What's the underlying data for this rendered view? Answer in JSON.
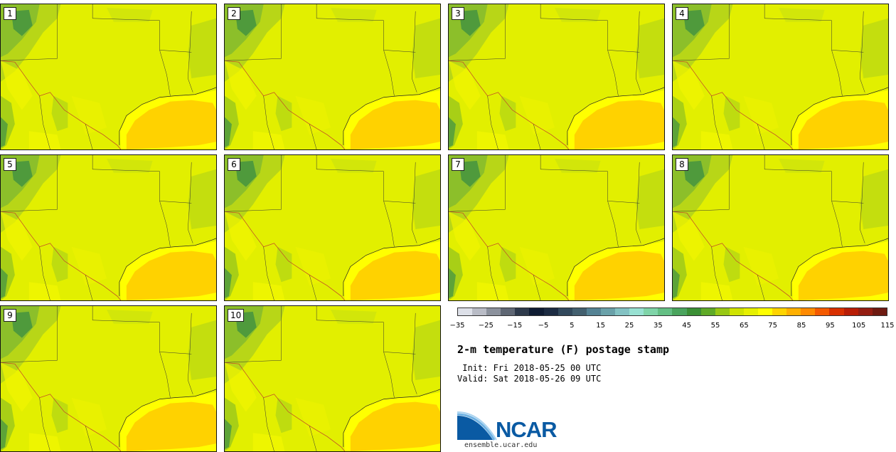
{
  "stamps": [
    {
      "label": "1"
    },
    {
      "label": "2"
    },
    {
      "label": "3"
    },
    {
      "label": "4"
    },
    {
      "label": "5"
    },
    {
      "label": "6"
    },
    {
      "label": "7"
    },
    {
      "label": "8"
    },
    {
      "label": "9"
    },
    {
      "label": "10"
    }
  ],
  "colorbar": {
    "colors": [
      "#dde0e8",
      "#b9bcc6",
      "#8b919c",
      "#5f6774",
      "#2e3a4b",
      "#0f1c33",
      "#1c2b42",
      "#32495c",
      "#43606f",
      "#558394",
      "#6aa1a9",
      "#83c2c3",
      "#98e1d2",
      "#7fd4a8",
      "#64bf84",
      "#4aa45d",
      "#3b8f35",
      "#5faa27",
      "#98c814",
      "#cfe300",
      "#e6f000",
      "#ffff00",
      "#ffd400",
      "#ffb000",
      "#ff8a00",
      "#f45a00",
      "#d83000",
      "#b81d06",
      "#941d12",
      "#6e1a11"
    ],
    "tick_labels": [
      "−35",
      "−25",
      "−15",
      "−5",
      "5",
      "15",
      "25",
      "35",
      "45",
      "55",
      "65",
      "75",
      "85",
      "95",
      "105",
      "115"
    ]
  },
  "title": "2-m temperature (F) postage stamp",
  "init_line": " Init: Fri 2018-05-25 00 UTC",
  "valid_line": "Valid: Sat 2018-05-26 09 UTC",
  "logo": {
    "text": "NCAR",
    "url": "ensemble.ucar.edu"
  }
}
